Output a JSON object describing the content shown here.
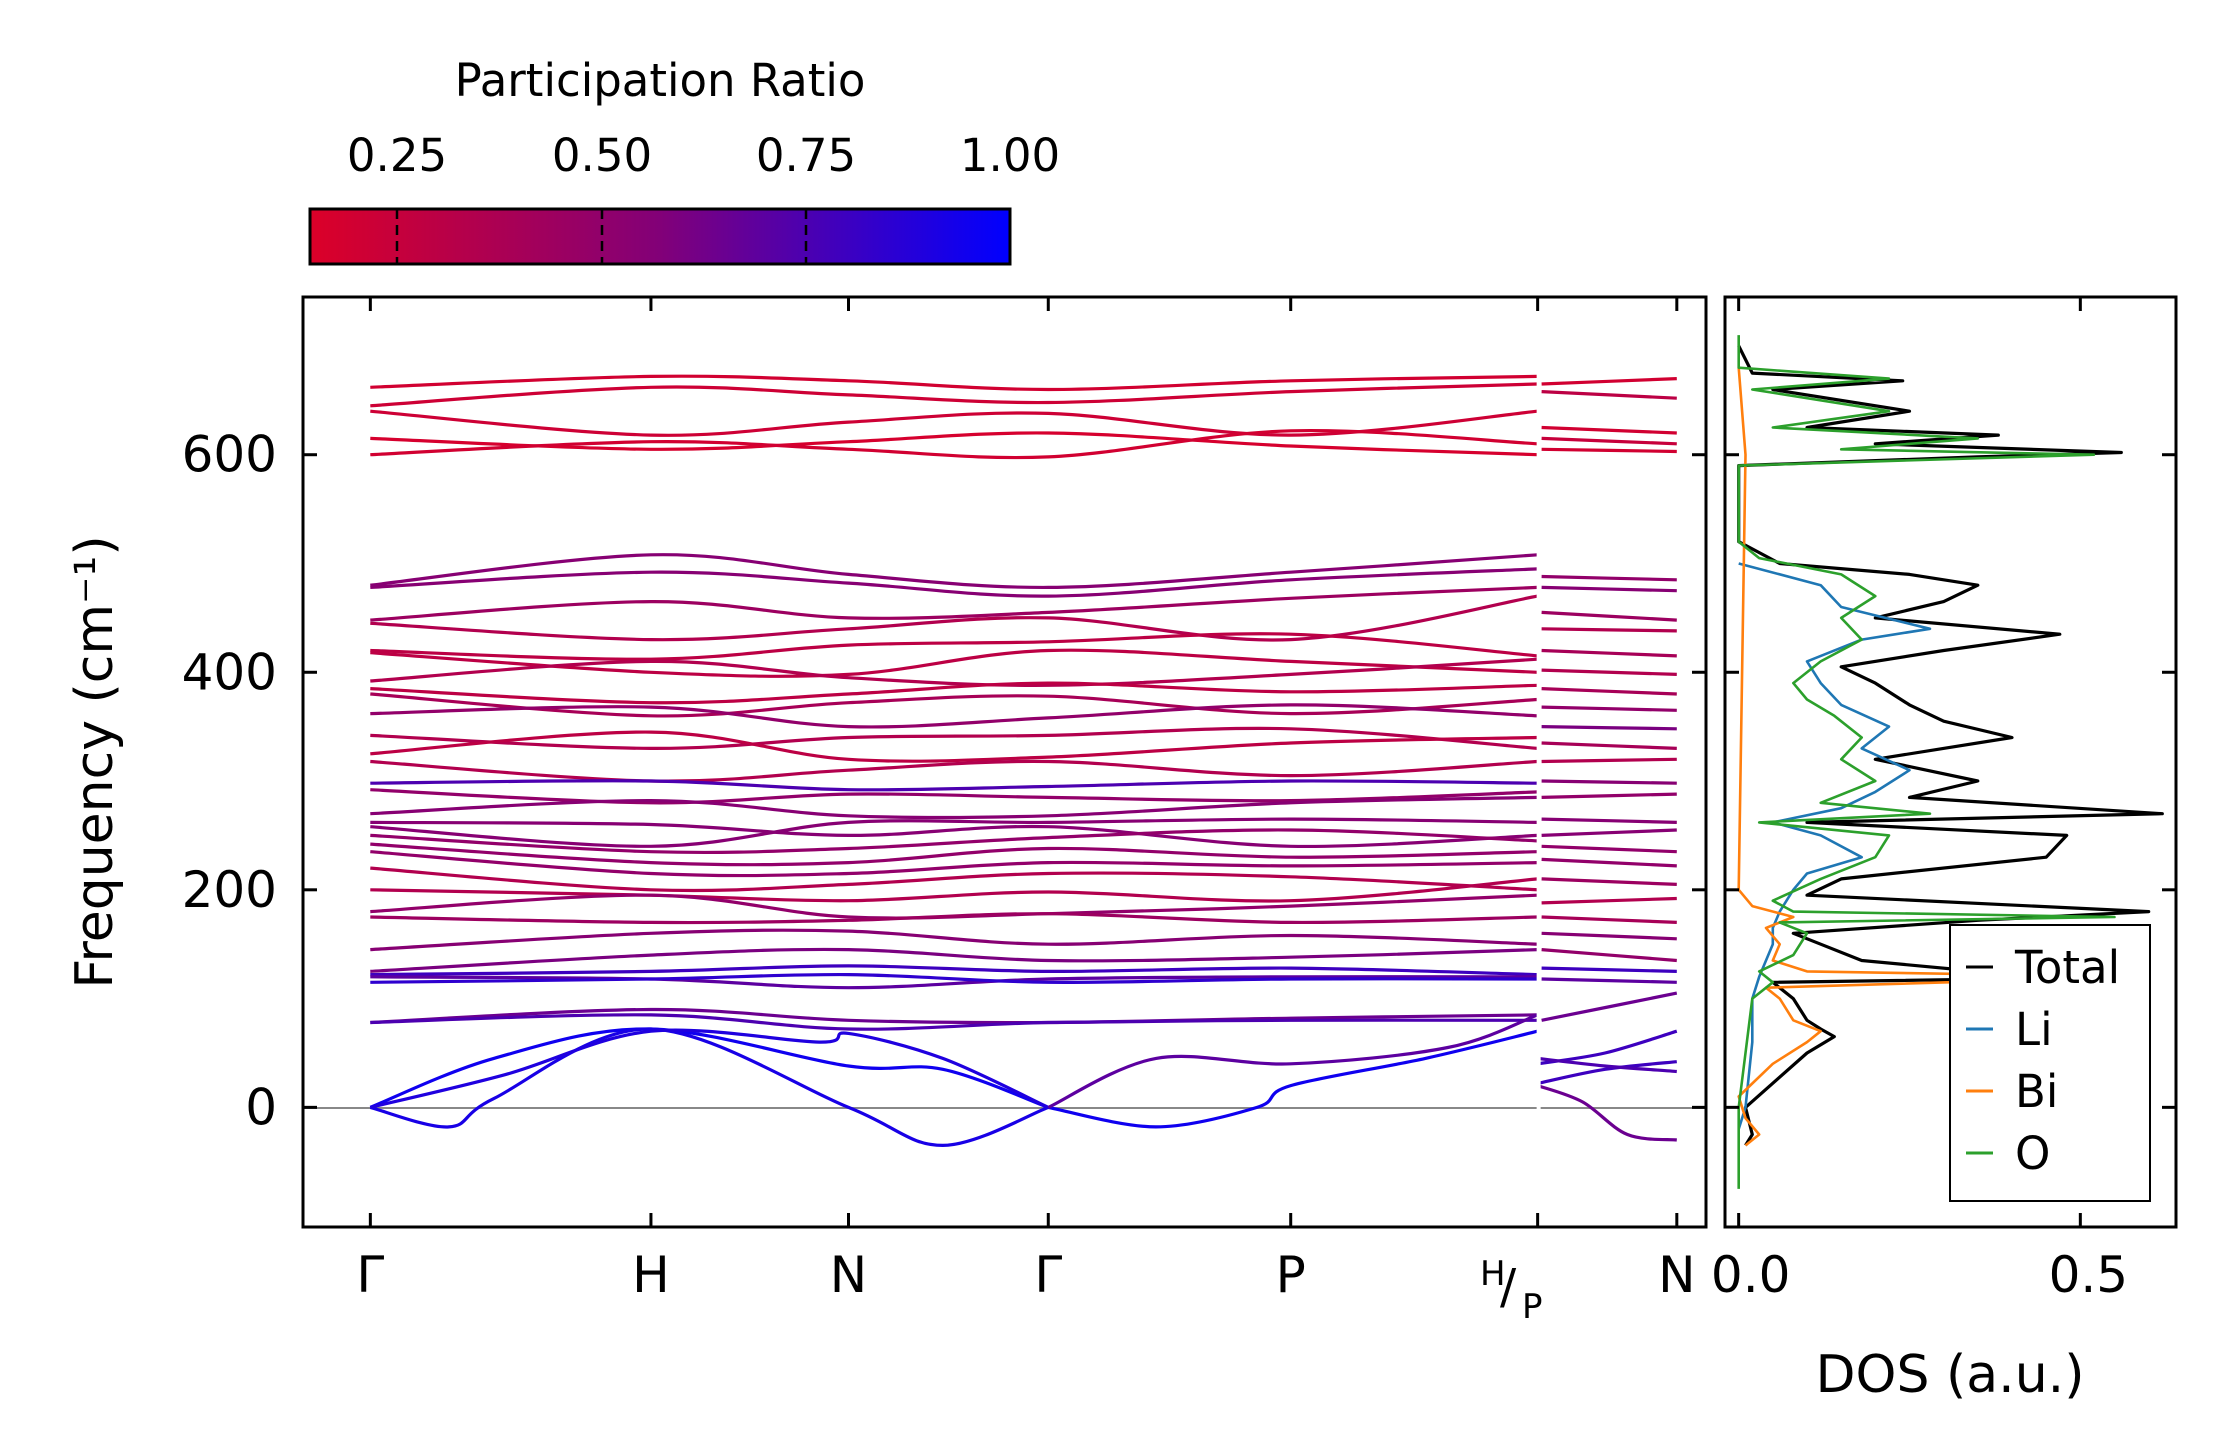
{
  "chart_data": [
    {
      "type": "line",
      "name": "phonon-band-structure",
      "ylabel": "Frequency (cm⁻¹)",
      "ylim": [
        -110,
        745
      ],
      "yticks": [
        0,
        200,
        400,
        600
      ],
      "ytick_labels": [
        "0",
        "200",
        "400",
        "600"
      ],
      "xlim": [
        -0.3,
        5.95
      ],
      "kpoints": [
        {
          "label": "Γ",
          "x": 0
        },
        {
          "label": "H",
          "x": 1.25
        },
        {
          "label": "N",
          "x": 2.13
        },
        {
          "label": "Γ",
          "x": 3.02
        },
        {
          "label": "P",
          "x": 4.1
        },
        {
          "label": "H/P",
          "label_top": "H",
          "label_bottom": "P",
          "x": 5.2
        },
        {
          "label": "N",
          "x": 5.82
        }
      ],
      "segments": [
        {
          "x0": 0,
          "x1": 5.2
        },
        {
          "x0": 5.2,
          "x1": 5.82
        }
      ],
      "zero_line": 0,
      "colorbar": {
        "title": "Participation Ratio",
        "range": [
          0.15,
          1.0
        ],
        "ticks": [
          0.25,
          0.5,
          0.75,
          1.0
        ],
        "tick_labels": [
          "0.25",
          "0.50",
          "0.75",
          "1.00"
        ],
        "color_low": "#dc0028",
        "color_mid": "#820078",
        "color_high": "#0000ff"
      },
      "optical_bands_seg1": [
        {
          "f": [
            662,
            672,
            668,
            660,
            668,
            672
          ],
          "pr": 0.2
        },
        {
          "f": [
            645,
            662,
            655,
            648,
            658,
            665
          ],
          "pr": 0.22
        },
        {
          "f": [
            640,
            618,
            630,
            638,
            618,
            640
          ],
          "pr": 0.22
        },
        {
          "f": [
            615,
            605,
            612,
            620,
            608,
            600
          ],
          "pr": 0.18
        },
        {
          "f": [
            600,
            612,
            605,
            598,
            622,
            610
          ],
          "pr": 0.2
        },
        {
          "f": [
            480,
            508,
            490,
            478,
            492,
            508
          ],
          "pr": 0.55
        },
        {
          "f": [
            478,
            492,
            482,
            470,
            485,
            495
          ],
          "pr": 0.55
        },
        {
          "f": [
            448,
            465,
            450,
            455,
            468,
            478
          ],
          "pr": 0.45
        },
        {
          "f": [
            445,
            430,
            440,
            450,
            430,
            470
          ],
          "pr": 0.35
        },
        {
          "f": [
            420,
            412,
            425,
            428,
            435,
            415
          ],
          "pr": 0.3
        },
        {
          "f": [
            418,
            400,
            398,
            420,
            410,
            400
          ],
          "pr": 0.3
        },
        {
          "f": [
            392,
            410,
            395,
            388,
            398,
            412
          ],
          "pr": 0.35
        },
        {
          "f": [
            385,
            372,
            380,
            390,
            382,
            388
          ],
          "pr": 0.3
        },
        {
          "f": [
            380,
            360,
            372,
            378,
            362,
            375
          ],
          "pr": 0.4
        },
        {
          "f": [
            362,
            368,
            350,
            358,
            370,
            360
          ],
          "pr": 0.5
        },
        {
          "f": [
            342,
            330,
            340,
            342,
            348,
            330
          ],
          "pr": 0.35
        },
        {
          "f": [
            325,
            345,
            320,
            322,
            335,
            340
          ],
          "pr": 0.3
        },
        {
          "f": [
            318,
            300,
            310,
            318,
            305,
            318
          ],
          "pr": 0.35
        },
        {
          "f": [
            298,
            300,
            292,
            295,
            300,
            298
          ],
          "pr": 0.75
        },
        {
          "f": [
            292,
            280,
            288,
            285,
            282,
            290
          ],
          "pr": 0.5
        },
        {
          "f": [
            270,
            282,
            268,
            268,
            280,
            285
          ],
          "pr": 0.55
        },
        {
          "f": [
            262,
            260,
            250,
            258,
            240,
            250
          ],
          "pr": 0.55
        },
        {
          "f": [
            258,
            240,
            262,
            262,
            265,
            262
          ],
          "pr": 0.55
        },
        {
          "f": [
            250,
            235,
            238,
            248,
            255,
            245
          ],
          "pr": 0.5
        },
        {
          "f": [
            242,
            225,
            225,
            238,
            230,
            235
          ],
          "pr": 0.5
        },
        {
          "f": [
            235,
            215,
            215,
            225,
            222,
            225
          ],
          "pr": 0.5
        },
        {
          "f": [
            220,
            200,
            205,
            215,
            212,
            200
          ],
          "pr": 0.35
        },
        {
          "f": [
            200,
            195,
            190,
            198,
            190,
            210
          ],
          "pr": 0.35
        },
        {
          "f": [
            180,
            195,
            175,
            178,
            185,
            195
          ],
          "pr": 0.5
        },
        {
          "f": [
            175,
            170,
            172,
            178,
            170,
            175
          ],
          "pr": 0.45
        },
        {
          "f": [
            145,
            160,
            162,
            150,
            158,
            150
          ],
          "pr": 0.55
        },
        {
          "f": [
            125,
            140,
            145,
            135,
            138,
            145
          ],
          "pr": 0.6
        },
        {
          "f": [
            122,
            125,
            130,
            125,
            128,
            122
          ],
          "pr": 0.8
        },
        {
          "f": [
            120,
            118,
            110,
            118,
            120,
            120
          ],
          "pr": 0.7
        },
        {
          "f": [
            115,
            118,
            122,
            115,
            118,
            118
          ],
          "pr": 0.85
        },
        {
          "f": [
            78,
            90,
            80,
            78,
            82,
            85
          ],
          "pr": 0.65
        },
        {
          "f": [
            78,
            85,
            72,
            78,
            80,
            80
          ],
          "pr": 0.75
        }
      ],
      "optical_bands_seg2": [
        {
          "f": [
            665,
            670
          ],
          "pr": 0.2
        },
        {
          "f": [
            658,
            652
          ],
          "pr": 0.3
        },
        {
          "f": [
            625,
            620
          ],
          "pr": 0.2
        },
        {
          "f": [
            615,
            610
          ],
          "pr": 0.25
        },
        {
          "f": [
            605,
            603
          ],
          "pr": 0.2
        },
        {
          "f": [
            488,
            485
          ],
          "pr": 0.5
        },
        {
          "f": [
            478,
            475
          ],
          "pr": 0.55
        },
        {
          "f": [
            455,
            448
          ],
          "pr": 0.45
        },
        {
          "f": [
            440,
            438
          ],
          "pr": 0.35
        },
        {
          "f": [
            420,
            415
          ],
          "pr": 0.4
        },
        {
          "f": [
            402,
            398
          ],
          "pr": 0.35
        },
        {
          "f": [
            385,
            380
          ],
          "pr": 0.4
        },
        {
          "f": [
            368,
            365
          ],
          "pr": 0.5
        },
        {
          "f": [
            350,
            348
          ],
          "pr": 0.6
        },
        {
          "f": [
            335,
            330
          ],
          "pr": 0.4
        },
        {
          "f": [
            318,
            320
          ],
          "pr": 0.35
        },
        {
          "f": [
            300,
            298
          ],
          "pr": 0.55
        },
        {
          "f": [
            285,
            288
          ],
          "pr": 0.5
        },
        {
          "f": [
            265,
            262
          ],
          "pr": 0.55
        },
        {
          "f": [
            250,
            255
          ],
          "pr": 0.55
        },
        {
          "f": [
            240,
            235
          ],
          "pr": 0.5
        },
        {
          "f": [
            228,
            222
          ],
          "pr": 0.5
        },
        {
          "f": [
            210,
            205
          ],
          "pr": 0.45
        },
        {
          "f": [
            188,
            192
          ],
          "pr": 0.35
        },
        {
          "f": [
            175,
            170
          ],
          "pr": 0.4
        },
        {
          "f": [
            160,
            155
          ],
          "pr": 0.55
        },
        {
          "f": [
            145,
            135
          ],
          "pr": 0.5
        },
        {
          "f": [
            128,
            125
          ],
          "pr": 0.8
        },
        {
          "f": [
            118,
            115
          ],
          "pr": 0.7
        },
        {
          "f": [
            80,
            105
          ],
          "pr": 0.65
        }
      ],
      "acoustic_bands": [
        {
          "x": [
            0,
            0.55,
            1.25,
            2.13,
            2.55,
            3.02
          ],
          "f": [
            0,
            45,
            72,
            38,
            35,
            0
          ],
          "pr": 0.95
        },
        {
          "x": [
            0,
            0.35,
            0.55,
            1.25,
            2.13,
            2.55,
            3.02
          ],
          "f": [
            0,
            -18,
            8,
            72,
            0,
            -35,
            0
          ],
          "pr": 0.92
        },
        {
          "x": [
            0,
            0.6,
            1.25,
            2.0,
            2.13,
            2.55,
            3.02
          ],
          "f": [
            0,
            30,
            70,
            60,
            68,
            45,
            0
          ],
          "pr": 0.9
        },
        {
          "x": [
            3.02,
            3.5,
            3.95,
            4.1,
            4.7,
            5.2
          ],
          "f": [
            0,
            -18,
            0,
            20,
            45,
            70
          ],
          "pr": 0.95
        },
        {
          "x": [
            3.02,
            3.5,
            4.1,
            4.8,
            5.2
          ],
          "f": [
            0,
            45,
            40,
            55,
            85
          ],
          "pr": 0.7
        },
        {
          "x": [
            5.2,
            5.4,
            5.6,
            5.82
          ],
          "f": [
            20,
            5,
            -25,
            -30
          ],
          "pr": 0.65
        },
        {
          "x": [
            5.2,
            5.5,
            5.82
          ],
          "f": [
            40,
            50,
            70
          ],
          "pr": 0.8
        },
        {
          "x": [
            5.2,
            5.5,
            5.82
          ],
          "f": [
            22,
            35,
            42
          ],
          "pr": 0.8
        },
        {
          "x": [
            5.2,
            5.5,
            5.82
          ],
          "f": [
            45,
            38,
            33
          ],
          "pr": 0.75
        }
      ]
    },
    {
      "type": "line",
      "name": "density-of-states",
      "xlabel": "DOS (a.u.)",
      "xlim": [
        -0.02,
        0.64
      ],
      "ylim": [
        -110,
        745
      ],
      "xticks": [
        0.0,
        0.5
      ],
      "xtick_labels": [
        "0.0",
        "0.5"
      ],
      "legend_location": "lower-right",
      "series": [
        {
          "name": "Total",
          "color": "#000000",
          "freq": [
            -35,
            -25,
            0,
            50,
            65,
            72,
            80,
            100,
            115,
            120,
            125,
            135,
            150,
            160,
            172,
            180,
            195,
            210,
            230,
            250,
            262,
            270,
            285,
            300,
            320,
            340,
            355,
            370,
            390,
            405,
            420,
            435,
            450,
            465,
            480,
            490,
            500,
            520,
            590,
            598,
            602,
            610,
            618,
            625,
            640,
            660,
            668,
            675,
            700
          ],
          "values": [
            0.01,
            0.02,
            0.01,
            0.1,
            0.14,
            0.12,
            0.1,
            0.08,
            0.05,
            0.6,
            0.35,
            0.18,
            0.12,
            0.08,
            0.35,
            0.6,
            0.1,
            0.15,
            0.45,
            0.48,
            0.1,
            0.62,
            0.25,
            0.35,
            0.2,
            0.4,
            0.3,
            0.25,
            0.2,
            0.15,
            0.3,
            0.47,
            0.2,
            0.3,
            0.35,
            0.25,
            0.06,
            0.0,
            0.0,
            0.35,
            0.56,
            0.2,
            0.38,
            0.1,
            0.25,
            0.05,
            0.24,
            0.02,
            0.0
          ]
        },
        {
          "name": "Li",
          "color": "#1f77b4",
          "freq": [
            -20,
            0,
            60,
            100,
            120,
            150,
            165,
            180,
            200,
            215,
            230,
            250,
            262,
            275,
            290,
            310,
            330,
            350,
            370,
            390,
            410,
            430,
            440,
            460,
            480,
            500
          ],
          "values": [
            0.0,
            0.01,
            0.02,
            0.02,
            0.03,
            0.05,
            0.05,
            0.06,
            0.08,
            0.1,
            0.18,
            0.12,
            0.05,
            0.15,
            0.2,
            0.25,
            0.18,
            0.22,
            0.15,
            0.12,
            0.1,
            0.18,
            0.28,
            0.15,
            0.12,
            0.0
          ]
        },
        {
          "name": "Bi",
          "color": "#ff7f0e",
          "freq": [
            -35,
            -25,
            -10,
            10,
            40,
            60,
            70,
            80,
            100,
            110,
            120,
            125,
            135,
            150,
            165,
            175,
            185,
            200,
            600,
            680
          ],
          "values": [
            0.01,
            0.03,
            0.01,
            0.0,
            0.05,
            0.1,
            0.12,
            0.08,
            0.06,
            0.04,
            0.58,
            0.1,
            0.05,
            0.06,
            0.04,
            0.08,
            0.02,
            0.0,
            0.01,
            0.0
          ],
          "series_kind": "partial"
        },
        {
          "name": "O",
          "color": "#2ca02c",
          "freq": [
            -75,
            -50,
            0,
            50,
            100,
            115,
            125,
            140,
            160,
            170,
            175,
            180,
            190,
            210,
            230,
            250,
            262,
            270,
            280,
            300,
            320,
            340,
            360,
            375,
            390,
            410,
            430,
            450,
            470,
            490,
            505,
            520,
            590,
            600,
            605,
            615,
            625,
            640,
            660,
            670,
            680,
            700,
            710
          ],
          "values": [
            0.0,
            0.0,
            0.0,
            0.01,
            0.02,
            0.05,
            0.03,
            0.08,
            0.1,
            0.06,
            0.55,
            0.08,
            0.05,
            0.12,
            0.2,
            0.22,
            0.03,
            0.28,
            0.12,
            0.2,
            0.15,
            0.18,
            0.14,
            0.1,
            0.08,
            0.12,
            0.18,
            0.15,
            0.2,
            0.15,
            0.03,
            0.0,
            0.0,
            0.52,
            0.15,
            0.35,
            0.05,
            0.22,
            0.02,
            0.22,
            0.0,
            0.0,
            0.0
          ]
        }
      ]
    }
  ]
}
